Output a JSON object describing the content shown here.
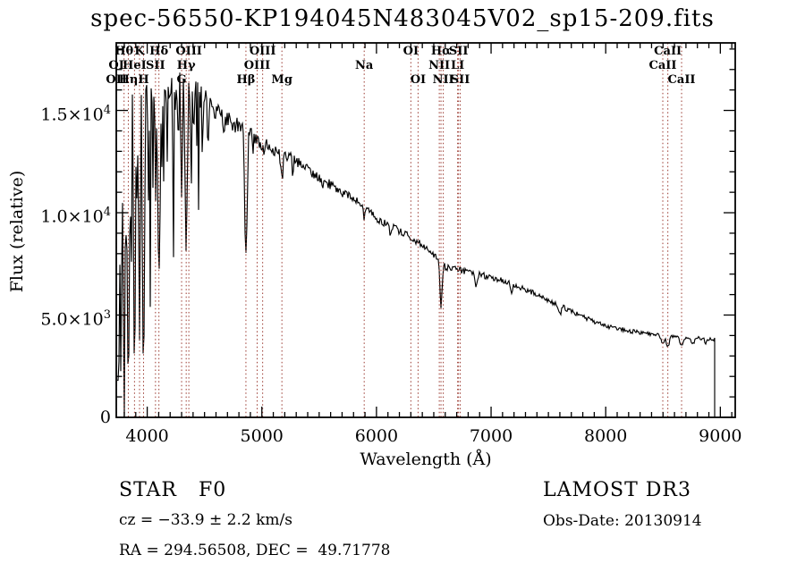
{
  "title": "spec-56550-KP194045N483045V02_sp15-209.fits",
  "annotations": {
    "class_label": "STAR   F0",
    "survey": "LAMOST DR3",
    "cz": "cz = −33.9 ± 2.2 km/s",
    "obs_date": "Obs-Date: 20130914",
    "ra_dec": "RA = 294.56508, DEC =  49.71778"
  },
  "chart_data": {
    "type": "line",
    "title": "spec-56550-KP194045N483045V02_sp15-209.fits",
    "xlabel": "Wavelength (Å)",
    "ylabel": "Flux (relative)",
    "xlim": [
      3730,
      9130
    ],
    "ylim": [
      0,
      18300
    ],
    "grid": false,
    "legend": "none",
    "x_ticks": [
      {
        "value": 4000,
        "label": "4000"
      },
      {
        "value": 5000,
        "label": "5000"
      },
      {
        "value": 6000,
        "label": "6000"
      },
      {
        "value": 7000,
        "label": "7000"
      },
      {
        "value": 8000,
        "label": "8000"
      },
      {
        "value": 9000,
        "label": "9000"
      }
    ],
    "x_minor_step": 100,
    "y_ticks": [
      {
        "value": 0,
        "label": "0"
      },
      {
        "value": 5000,
        "label": "5.0×10^3"
      },
      {
        "value": 10000,
        "label": "1.0×10^4"
      },
      {
        "value": 15000,
        "label": "1.5×10^4"
      }
    ],
    "y_minor_step": 1000,
    "colors": {
      "spectrum": "#000000",
      "line_marker": "#9b3a31",
      "axis": "#000000",
      "text": "#000000",
      "background": "#ffffff"
    },
    "spectral_lines": [
      {
        "label": "Hθ",
        "wavelength": 3798,
        "row": 1
      },
      {
        "label": "K",
        "wavelength": 3933,
        "row": 1
      },
      {
        "label": "Hδ",
        "wavelength": 4102,
        "row": 1
      },
      {
        "label": "OIII",
        "wavelength": 4363,
        "row": 1
      },
      {
        "label": "OIII",
        "wavelength": 5007,
        "row": 1
      },
      {
        "label": "OI",
        "wavelength": 6300,
        "row": 1
      },
      {
        "label": "Hα",
        "wavelength": 6563,
        "row": 1
      },
      {
        "label": "SII",
        "wavelength": 6716,
        "row": 1
      },
      {
        "label": "CaII",
        "wavelength": 8542,
        "row": 1
      },
      {
        "label": "OI",
        "wavelength": 3727,
        "row": 2
      },
      {
        "label": "HeI",
        "wavelength": 3889,
        "row": 2
      },
      {
        "label": "SII",
        "wavelength": 4072,
        "row": 2
      },
      {
        "label": "Hγ",
        "wavelength": 4340,
        "row": 2
      },
      {
        "label": "OIII",
        "wavelength": 4959,
        "row": 2
      },
      {
        "label": "Na",
        "wavelength": 5893,
        "row": 2
      },
      {
        "label": "NII",
        "wavelength": 6548,
        "row": 2
      },
      {
        "label": "LI",
        "wavelength": 6708,
        "row": 2
      },
      {
        "label": "CaII",
        "wavelength": 8498,
        "row": 2
      },
      {
        "label": "OII",
        "wavelength": 3727,
        "row": 3
      },
      {
        "label": "Hη",
        "wavelength": 3835,
        "row": 3
      },
      {
        "label": "H",
        "wavelength": 3968,
        "row": 3
      },
      {
        "label": "G",
        "wavelength": 4300,
        "row": 3
      },
      {
        "label": "Hβ",
        "wavelength": 4861,
        "row": 3
      },
      {
        "label": "Mg",
        "wavelength": 5175,
        "row": 3
      },
      {
        "label": "OI",
        "wavelength": 6363,
        "row": 3
      },
      {
        "label": "NII",
        "wavelength": 6583,
        "row": 3
      },
      {
        "label": "SII",
        "wavelength": 6731,
        "row": 3
      },
      {
        "label": "CaII",
        "wavelength": 8662,
        "row": 3
      }
    ],
    "spectrum": {
      "range": [
        3734,
        8950
      ],
      "seed": 20130914,
      "continuum": [
        [
          3734,
          2500
        ],
        [
          3755,
          9500
        ],
        [
          3775,
          12500
        ],
        [
          3800,
          14200
        ],
        [
          3845,
          15100
        ],
        [
          3900,
          15400
        ],
        [
          4000,
          15800
        ],
        [
          4100,
          16200
        ],
        [
          4250,
          16450
        ],
        [
          4400,
          16050
        ],
        [
          4500,
          15450
        ],
        [
          4600,
          15000
        ],
        [
          4700,
          14600
        ],
        [
          4800,
          14200
        ],
        [
          4900,
          13800
        ],
        [
          5000,
          13400
        ],
        [
          5100,
          13100
        ],
        [
          5200,
          12850
        ],
        [
          5300,
          12500
        ],
        [
          5400,
          12100
        ],
        [
          5500,
          11700
        ],
        [
          5600,
          11350
        ],
        [
          5700,
          11000
        ],
        [
          5800,
          10650
        ],
        [
          5900,
          10350
        ],
        [
          6000,
          9700
        ],
        [
          6100,
          9400
        ],
        [
          6200,
          9100
        ],
        [
          6300,
          8800
        ],
        [
          6400,
          8400
        ],
        [
          6500,
          7900
        ],
        [
          6600,
          7350
        ],
        [
          6800,
          7100
        ],
        [
          7000,
          6850
        ],
        [
          7200,
          6500
        ],
        [
          7400,
          6000
        ],
        [
          7600,
          5430
        ],
        [
          7700,
          5220
        ],
        [
          7800,
          4900
        ],
        [
          8000,
          4480
        ],
        [
          8200,
          4230
        ],
        [
          8400,
          4060
        ],
        [
          8550,
          3950
        ],
        [
          8700,
          3900
        ],
        [
          8950,
          3820
        ]
      ],
      "absorption_lines": [
        [
          3727,
          8,
          500
        ],
        [
          3750,
          6,
          1200
        ],
        [
          3770,
          5,
          2000
        ],
        [
          3798,
          7,
          900
        ],
        [
          3820,
          4,
          5000
        ],
        [
          3835,
          7,
          700
        ],
        [
          3860,
          4,
          6000
        ],
        [
          3889,
          7,
          1800
        ],
        [
          3912,
          3,
          9000
        ],
        [
          3933,
          6,
          3500
        ],
        [
          3968,
          8,
          2500
        ],
        [
          4009,
          3,
          10000
        ],
        [
          4026,
          4,
          10800
        ],
        [
          4072,
          4,
          10500
        ],
        [
          4102,
          9,
          6300
        ],
        [
          4144,
          4,
          12000
        ],
        [
          4173,
          3,
          12500
        ],
        [
          4227,
          5,
          11800
        ],
        [
          4271,
          4,
          12800
        ],
        [
          4300,
          7,
          12000
        ],
        [
          4340,
          9,
          8300
        ],
        [
          4383,
          5,
          12000
        ],
        [
          4405,
          4,
          12800
        ],
        [
          4481,
          4,
          13000
        ],
        [
          4530,
          4,
          13300
        ],
        [
          4668,
          4,
          13500
        ],
        [
          4861,
          10,
          7900
        ],
        [
          4920,
          4,
          12900
        ],
        [
          5015,
          4,
          12700
        ],
        [
          5175,
          9,
          11600
        ],
        [
          5270,
          5,
          11900
        ],
        [
          5530,
          4,
          11000
        ],
        [
          5893,
          7,
          9700
        ],
        [
          6122,
          4,
          8900
        ],
        [
          6300,
          3,
          8500
        ],
        [
          6563,
          9,
          5400
        ],
        [
          6867,
          9,
          6500
        ],
        [
          7180,
          6,
          6000
        ],
        [
          7600,
          11,
          5000
        ],
        [
          8226,
          5,
          4150
        ],
        [
          8498,
          13,
          3650
        ],
        [
          8542,
          13,
          3520
        ],
        [
          8662,
          14,
          3480
        ],
        [
          8760,
          10,
          3560
        ],
        [
          8870,
          7,
          3600
        ]
      ],
      "noise_amp": [
        [
          3734,
          1100
        ],
        [
          3800,
          950
        ],
        [
          3900,
          820
        ],
        [
          4100,
          760
        ],
        [
          4450,
          620
        ],
        [
          4800,
          400
        ],
        [
          5200,
          280
        ],
        [
          5800,
          210
        ],
        [
          6300,
          175
        ],
        [
          6800,
          150
        ],
        [
          7500,
          125
        ],
        [
          8200,
          105
        ],
        [
          9000,
          95
        ]
      ],
      "blue_spikes": {
        "below": 4480,
        "power": 9,
        "depth": 5500
      }
    }
  }
}
